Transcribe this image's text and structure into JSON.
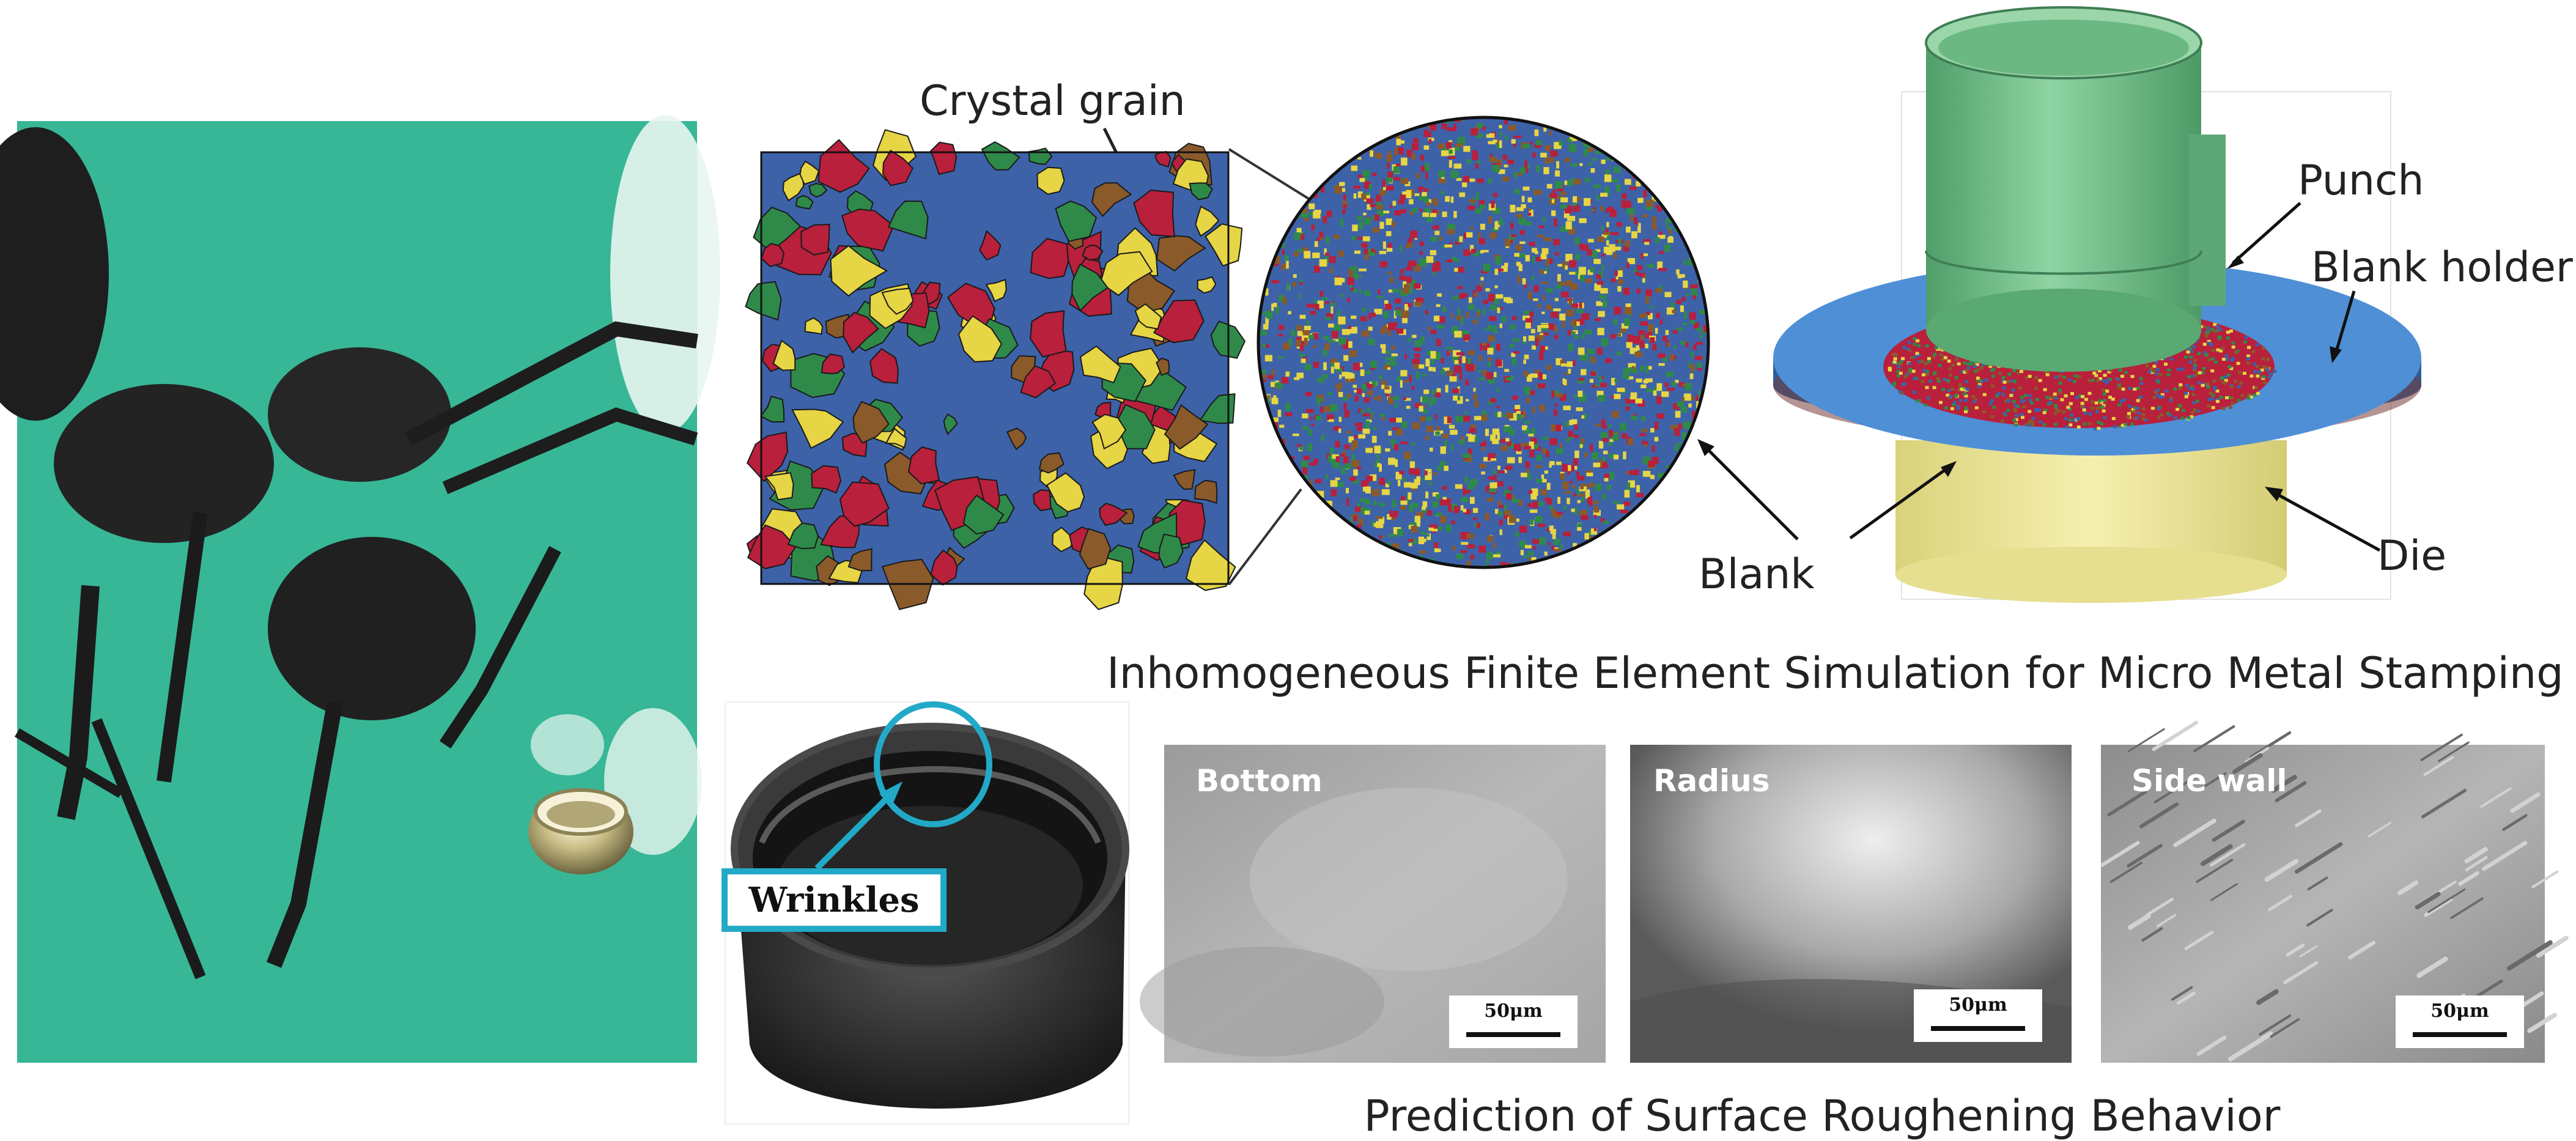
{
  "labels": {
    "crystal_grain": "Crystal grain",
    "punch": "Punch",
    "blank_holder": "Blank holder",
    "blank": "Blank",
    "die": "Die",
    "wrinkles": "Wrinkles"
  },
  "captions": {
    "simulation": "Inhomogeneous Finite Element Simulation for Micro Metal Stamping",
    "roughening": "Prediction of Surface Roughening Behavior"
  },
  "micrographs": [
    {
      "label": "Bottom",
      "scale": "50μm"
    },
    {
      "label": "Radius",
      "scale": "50μm"
    },
    {
      "label": "Side wall",
      "scale": "50μm"
    }
  ],
  "colors": {
    "grain_blue": "#3d62a8",
    "grain_red": "#b8203c",
    "grain_green": "#2f8a4a",
    "grain_yellow": "#e6d544",
    "grain_brown": "#8a5a2b",
    "photo_green": "#3bbf9c",
    "punch_green": "#6fbf85",
    "die_yellow": "#ece593",
    "holder_blue": "#4f8fd6",
    "wrinkle_cyan": "#23a9c8"
  },
  "icons": [
    "ant-photo",
    "micro-cup",
    "crystal-grain-map",
    "grain-disc",
    "stamping-tool",
    "wrinkled-cup"
  ]
}
